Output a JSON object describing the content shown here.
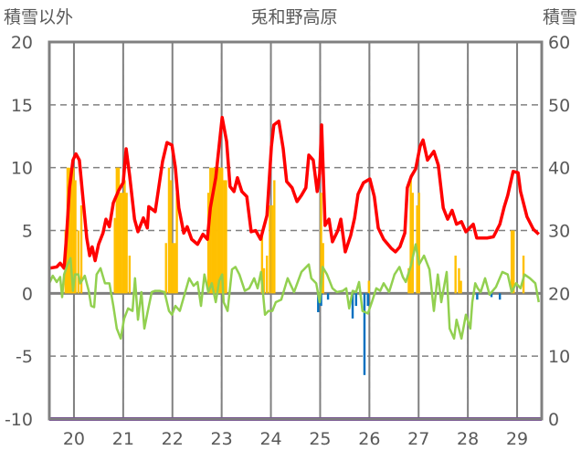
{
  "chart_data": {
    "type": "bar+line",
    "title": "兎和野高原",
    "ylabel_left": "積雪以外",
    "ylabel_right": "積雪",
    "ylim_left": [
      -10,
      20
    ],
    "ylim_right": [
      0,
      60
    ],
    "yticks_left": [
      "20",
      "15",
      "10",
      "5",
      "0",
      "-5",
      "-10"
    ],
    "yticks_right": [
      "60",
      "50",
      "40",
      "30",
      "20",
      "10",
      "0"
    ],
    "xlim": [
      19.5,
      29.5
    ],
    "xticks": [
      "20",
      "21",
      "22",
      "23",
      "24",
      "25",
      "26",
      "27",
      "28",
      "29"
    ],
    "grid": true,
    "colors": {
      "red": "#ff0000",
      "green": "#92d050",
      "yellow": "#ffc000",
      "blue": "#0070c0",
      "purple": "#7030a0",
      "frame": "#808080"
    },
    "series": [
      {
        "name": "red-line",
        "axis": "left",
        "points": [
          [
            19.5,
            2.0
          ],
          [
            19.65,
            2.1
          ],
          [
            19.72,
            2.4
          ],
          [
            19.8,
            2.0
          ],
          [
            19.85,
            4.6
          ],
          [
            19.91,
            8.4
          ],
          [
            19.98,
            10.6
          ],
          [
            20.04,
            11.1
          ],
          [
            20.11,
            10.6
          ],
          [
            20.17,
            8.1
          ],
          [
            20.26,
            4.4
          ],
          [
            20.32,
            3.0
          ],
          [
            20.37,
            3.7
          ],
          [
            20.43,
            2.6
          ],
          [
            20.5,
            3.9
          ],
          [
            20.59,
            4.8
          ],
          [
            20.65,
            5.9
          ],
          [
            20.72,
            5.3
          ],
          [
            20.8,
            7.2
          ],
          [
            20.91,
            8.2
          ],
          [
            21.0,
            8.8
          ],
          [
            21.06,
            11.5
          ],
          [
            21.13,
            9.4
          ],
          [
            21.23,
            5.9
          ],
          [
            21.3,
            4.9
          ],
          [
            21.41,
            6.0
          ],
          [
            21.49,
            5.2
          ],
          [
            21.52,
            6.9
          ],
          [
            21.65,
            6.5
          ],
          [
            21.8,
            10.5
          ],
          [
            21.89,
            12.0
          ],
          [
            21.99,
            11.8
          ],
          [
            22.06,
            10.0
          ],
          [
            22.13,
            6.8
          ],
          [
            22.23,
            4.8
          ],
          [
            22.3,
            5.3
          ],
          [
            22.39,
            4.3
          ],
          [
            22.51,
            3.9
          ],
          [
            22.62,
            4.7
          ],
          [
            22.71,
            4.3
          ],
          [
            22.77,
            6.8
          ],
          [
            22.88,
            9.2
          ],
          [
            22.95,
            11.8
          ],
          [
            23.01,
            14.0
          ],
          [
            23.1,
            12.1
          ],
          [
            23.17,
            8.5
          ],
          [
            23.25,
            8.1
          ],
          [
            23.32,
            9.2
          ],
          [
            23.41,
            8.1
          ],
          [
            23.51,
            7.7
          ],
          [
            23.6,
            4.9
          ],
          [
            23.69,
            5.0
          ],
          [
            23.79,
            4.3
          ],
          [
            23.92,
            6.2
          ],
          [
            24.01,
            11.7
          ],
          [
            24.06,
            13.4
          ],
          [
            24.16,
            13.7
          ],
          [
            24.25,
            11.5
          ],
          [
            24.32,
            8.9
          ],
          [
            24.43,
            8.4
          ],
          [
            24.53,
            7.3
          ],
          [
            24.62,
            7.8
          ],
          [
            24.71,
            8.4
          ],
          [
            24.77,
            11.0
          ],
          [
            24.86,
            10.6
          ],
          [
            24.94,
            8.1
          ],
          [
            24.99,
            9.5
          ],
          [
            25.03,
            13.4
          ],
          [
            25.1,
            5.4
          ],
          [
            25.18,
            5.9
          ],
          [
            25.25,
            4.1
          ],
          [
            25.36,
            5.0
          ],
          [
            25.42,
            5.9
          ],
          [
            25.51,
            3.3
          ],
          [
            25.62,
            4.6
          ],
          [
            25.7,
            6.0
          ],
          [
            25.77,
            7.9
          ],
          [
            25.88,
            8.8
          ],
          [
            26.01,
            9.1
          ],
          [
            26.1,
            7.7
          ],
          [
            26.18,
            5.2
          ],
          [
            26.29,
            4.3
          ],
          [
            26.44,
            3.6
          ],
          [
            26.53,
            3.3
          ],
          [
            26.62,
            3.7
          ],
          [
            26.72,
            4.8
          ],
          [
            26.77,
            8.4
          ],
          [
            26.85,
            9.3
          ],
          [
            26.94,
            9.9
          ],
          [
            27.03,
            11.7
          ],
          [
            27.09,
            12.2
          ],
          [
            27.18,
            10.6
          ],
          [
            27.31,
            11.3
          ],
          [
            27.4,
            10.2
          ],
          [
            27.5,
            6.8
          ],
          [
            27.59,
            5.9
          ],
          [
            27.68,
            6.6
          ],
          [
            27.77,
            5.5
          ],
          [
            27.87,
            5.7
          ],
          [
            27.96,
            4.9
          ],
          [
            28.11,
            5.5
          ],
          [
            28.18,
            4.4
          ],
          [
            28.28,
            4.4
          ],
          [
            28.39,
            4.4
          ],
          [
            28.52,
            4.5
          ],
          [
            28.65,
            5.5
          ],
          [
            28.74,
            6.9
          ],
          [
            28.81,
            7.8
          ],
          [
            28.92,
            9.7
          ],
          [
            29.02,
            9.6
          ],
          [
            29.07,
            8.1
          ],
          [
            29.2,
            6.1
          ],
          [
            29.33,
            5.1
          ],
          [
            29.44,
            4.7
          ]
        ]
      },
      {
        "name": "green-line",
        "axis": "left",
        "points": [
          [
            19.5,
            0.8
          ],
          [
            19.57,
            1.4
          ],
          [
            19.65,
            0.9
          ],
          [
            19.72,
            1.3
          ],
          [
            19.76,
            -0.3
          ],
          [
            19.8,
            1.5
          ],
          [
            19.87,
            2.3
          ],
          [
            19.93,
            2.8
          ],
          [
            19.98,
            0.2
          ],
          [
            20.02,
            1.5
          ],
          [
            20.09,
            1.5
          ],
          [
            20.13,
            0.8
          ],
          [
            20.22,
            1.4
          ],
          [
            20.3,
            0.2
          ],
          [
            20.35,
            -1.0
          ],
          [
            20.41,
            -1.1
          ],
          [
            20.46,
            1.5
          ],
          [
            20.54,
            2.0
          ],
          [
            20.63,
            0.8
          ],
          [
            20.72,
            0.8
          ],
          [
            20.8,
            -1.0
          ],
          [
            20.87,
            -2.8
          ],
          [
            20.95,
            -3.6
          ],
          [
            21.02,
            -2.0
          ],
          [
            21.1,
            -1.2
          ],
          [
            21.19,
            -1.4
          ],
          [
            21.24,
            1.2
          ],
          [
            21.3,
            -2.1
          ],
          [
            21.37,
            0.1
          ],
          [
            21.43,
            -2.8
          ],
          [
            21.5,
            -1.4
          ],
          [
            21.58,
            0.1
          ],
          [
            21.65,
            0.2
          ],
          [
            21.74,
            0.2
          ],
          [
            21.84,
            0.1
          ],
          [
            21.93,
            -1.4
          ],
          [
            21.99,
            -1.7
          ],
          [
            22.06,
            -1.0
          ],
          [
            22.15,
            -1.4
          ],
          [
            22.26,
            0.1
          ],
          [
            22.34,
            1.2
          ],
          [
            22.43,
            0.6
          ],
          [
            22.51,
            0.9
          ],
          [
            22.58,
            -1.0
          ],
          [
            22.65,
            1.5
          ],
          [
            22.73,
            0.1
          ],
          [
            22.8,
            0.8
          ],
          [
            22.88,
            -0.7
          ],
          [
            22.95,
            1.0
          ],
          [
            23.01,
            1.5
          ],
          [
            23.04,
            -0.7
          ],
          [
            23.12,
            -1.4
          ],
          [
            23.21,
            1.9
          ],
          [
            23.28,
            2.1
          ],
          [
            23.36,
            1.5
          ],
          [
            23.47,
            0.2
          ],
          [
            23.56,
            0.4
          ],
          [
            23.66,
            1.2
          ],
          [
            23.73,
            0.4
          ],
          [
            23.8,
            1.7
          ],
          [
            23.88,
            -1.7
          ],
          [
            23.95,
            -1.4
          ],
          [
            24.03,
            -1.4
          ],
          [
            24.1,
            -0.7
          ],
          [
            24.21,
            -0.5
          ],
          [
            24.34,
            1.2
          ],
          [
            24.47,
            0.1
          ],
          [
            24.62,
            1.7
          ],
          [
            24.77,
            2.3
          ],
          [
            24.82,
            1.2
          ],
          [
            24.92,
            0.8
          ],
          [
            24.99,
            -0.7
          ],
          [
            25.05,
            2.1
          ],
          [
            25.14,
            1.5
          ],
          [
            25.25,
            0.4
          ],
          [
            25.34,
            0.1
          ],
          [
            25.46,
            0.2
          ],
          [
            25.53,
            0.4
          ],
          [
            25.59,
            -1.2
          ],
          [
            25.66,
            0.2
          ],
          [
            25.73,
            0.1
          ],
          [
            25.79,
            0.9
          ],
          [
            25.86,
            -1.4
          ],
          [
            25.97,
            -1.6
          ],
          [
            26.05,
            -0.7
          ],
          [
            26.14,
            0.4
          ],
          [
            26.22,
            0.2
          ],
          [
            26.29,
            0.8
          ],
          [
            26.4,
            0.1
          ],
          [
            26.51,
            1.5
          ],
          [
            26.61,
            2.1
          ],
          [
            26.68,
            1.3
          ],
          [
            26.74,
            0.9
          ],
          [
            26.85,
            2.3
          ],
          [
            26.94,
            3.9
          ],
          [
            27.01,
            2.3
          ],
          [
            27.11,
            3.0
          ],
          [
            27.22,
            1.9
          ],
          [
            27.31,
            -1.4
          ],
          [
            27.39,
            1.5
          ],
          [
            27.46,
            -0.7
          ],
          [
            27.57,
            1.7
          ],
          [
            27.63,
            -2.8
          ],
          [
            27.72,
            -3.6
          ],
          [
            27.77,
            -2.1
          ],
          [
            27.87,
            -3.6
          ],
          [
            27.96,
            -1.7
          ],
          [
            28.05,
            -2.8
          ],
          [
            28.09,
            -0.7
          ],
          [
            28.15,
            0.8
          ],
          [
            28.2,
            0.4
          ],
          [
            28.26,
            0.1
          ],
          [
            28.35,
            1.2
          ],
          [
            28.44,
            -0.1
          ],
          [
            28.57,
            0.5
          ],
          [
            28.7,
            1.7
          ],
          [
            28.81,
            1.5
          ],
          [
            28.89,
            0.1
          ],
          [
            28.98,
            0.8
          ],
          [
            29.07,
            0.4
          ],
          [
            29.15,
            1.5
          ],
          [
            29.26,
            1.2
          ],
          [
            29.37,
            0.8
          ],
          [
            29.44,
            -0.7
          ]
        ]
      },
      {
        "name": "yellow-bars",
        "axis": "left",
        "points": [
          [
            19.83,
            5
          ],
          [
            19.87,
            10
          ],
          [
            19.91,
            10
          ],
          [
            19.95,
            10
          ],
          [
            19.99,
            10
          ],
          [
            20.03,
            9
          ],
          [
            20.09,
            5
          ],
          [
            20.15,
            7
          ],
          [
            20.83,
            6
          ],
          [
            20.87,
            10
          ],
          [
            20.91,
            10
          ],
          [
            20.95,
            8
          ],
          [
            20.99,
            8
          ],
          [
            21.03,
            9
          ],
          [
            21.07,
            8
          ],
          [
            21.13,
            3
          ],
          [
            21.87,
            4
          ],
          [
            21.93,
            10
          ],
          [
            21.97,
            9
          ],
          [
            22.01,
            4
          ],
          [
            22.05,
            4
          ],
          [
            22.09,
            8
          ],
          [
            22.73,
            8
          ],
          [
            22.77,
            10
          ],
          [
            22.81,
            10
          ],
          [
            22.85,
            10
          ],
          [
            22.89,
            10
          ],
          [
            22.93,
            10
          ],
          [
            22.97,
            10
          ],
          [
            23.01,
            10
          ],
          [
            23.05,
            9
          ],
          [
            23.09,
            9
          ],
          [
            23.82,
            5
          ],
          [
            23.86,
            2
          ],
          [
            23.92,
            3
          ],
          [
            23.98,
            7
          ],
          [
            24.03,
            7
          ],
          [
            24.07,
            9
          ],
          [
            25.02,
            8
          ],
          [
            25.06,
            4
          ],
          [
            25.99,
            1
          ],
          [
            26.8,
            2
          ],
          [
            26.84,
            9
          ],
          [
            26.88,
            8
          ],
          [
            26.97,
            7
          ],
          [
            27.01,
            8
          ],
          [
            27.75,
            3
          ],
          [
            27.82,
            2
          ],
          [
            27.86,
            1
          ],
          [
            28.89,
            5
          ],
          [
            28.93,
            5
          ],
          [
            29.13,
            3
          ]
        ]
      },
      {
        "name": "blue-bars",
        "axis": "left",
        "points": [
          [
            24.96,
            -1.5
          ],
          [
            25.02,
            -1
          ],
          [
            25.16,
            -0.5
          ],
          [
            25.66,
            -2
          ],
          [
            25.73,
            -1
          ],
          [
            25.9,
            -6.5
          ],
          [
            25.97,
            -1
          ],
          [
            28.19,
            -0.5
          ],
          [
            28.48,
            -0.3
          ],
          [
            28.65,
            -0.5
          ]
        ]
      },
      {
        "name": "purple-line",
        "axis": "right",
        "points": [
          [
            19.5,
            0
          ],
          [
            29.5,
            0
          ]
        ]
      }
    ]
  }
}
